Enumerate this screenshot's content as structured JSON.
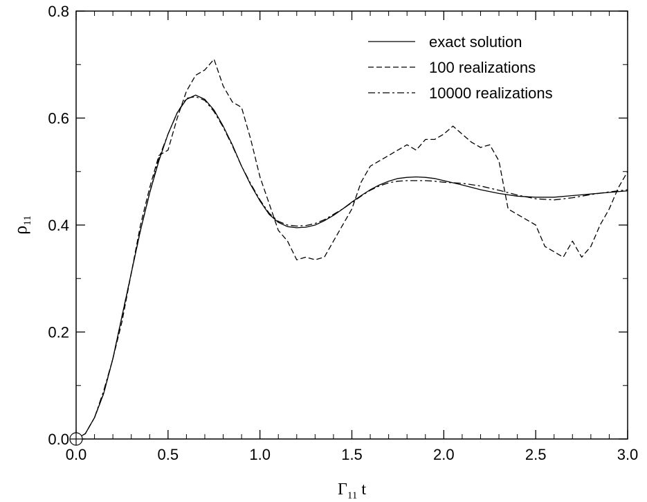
{
  "chart_data": {
    "type": "line",
    "title": "",
    "xlabel": {
      "main": "Γ",
      "sub": "11",
      "tail": " t"
    },
    "ylabel": {
      "main": "ρ",
      "sub": "11"
    },
    "xlim": [
      0.0,
      3.0
    ],
    "ylim": [
      0.0,
      0.8
    ],
    "xticks": [
      "0.0",
      "0.5",
      "1.0",
      "1.5",
      "2.0",
      "2.5",
      "3.0"
    ],
    "yticks": [
      "0.0",
      "0.2",
      "0.4",
      "0.6",
      "0.8"
    ],
    "grid": false,
    "legend_position": "top-right",
    "series": [
      {
        "name": "exact solution",
        "style": "solid",
        "x": [
          0.0,
          0.05,
          0.1,
          0.15,
          0.2,
          0.25,
          0.3,
          0.35,
          0.4,
          0.45,
          0.5,
          0.55,
          0.6,
          0.65,
          0.7,
          0.75,
          0.8,
          0.85,
          0.9,
          0.95,
          1.0,
          1.05,
          1.1,
          1.15,
          1.2,
          1.25,
          1.3,
          1.35,
          1.4,
          1.45,
          1.5,
          1.55,
          1.6,
          1.65,
          1.7,
          1.75,
          1.8,
          1.85,
          1.9,
          1.95,
          2.0,
          2.1,
          2.2,
          2.3,
          2.4,
          2.5,
          2.6,
          2.7,
          2.8,
          2.9,
          3.0
        ],
        "y": [
          0.0,
          0.01,
          0.04,
          0.085,
          0.15,
          0.23,
          0.31,
          0.39,
          0.46,
          0.52,
          0.57,
          0.61,
          0.635,
          0.643,
          0.635,
          0.615,
          0.585,
          0.55,
          0.51,
          0.475,
          0.445,
          0.42,
          0.405,
          0.397,
          0.395,
          0.396,
          0.4,
          0.408,
          0.418,
          0.43,
          0.443,
          0.455,
          0.466,
          0.475,
          0.482,
          0.487,
          0.489,
          0.49,
          0.489,
          0.487,
          0.483,
          0.475,
          0.466,
          0.459,
          0.454,
          0.452,
          0.452,
          0.455,
          0.458,
          0.461,
          0.464
        ]
      },
      {
        "name": "100 realizations",
        "style": "dashed",
        "x": [
          0.0,
          0.05,
          0.1,
          0.15,
          0.2,
          0.25,
          0.3,
          0.35,
          0.4,
          0.45,
          0.5,
          0.55,
          0.6,
          0.65,
          0.7,
          0.75,
          0.8,
          0.85,
          0.9,
          0.95,
          1.0,
          1.05,
          1.1,
          1.15,
          1.2,
          1.25,
          1.3,
          1.35,
          1.4,
          1.45,
          1.5,
          1.55,
          1.6,
          1.65,
          1.7,
          1.75,
          1.8,
          1.85,
          1.9,
          1.95,
          2.0,
          2.05,
          2.1,
          2.15,
          2.2,
          2.25,
          2.3,
          2.35,
          2.4,
          2.45,
          2.5,
          2.55,
          2.6,
          2.65,
          2.7,
          2.75,
          2.8,
          2.85,
          2.9,
          2.95,
          3.0
        ],
        "y": [
          0.0,
          0.01,
          0.04,
          0.085,
          0.15,
          0.22,
          0.31,
          0.4,
          0.47,
          0.53,
          0.54,
          0.6,
          0.65,
          0.68,
          0.69,
          0.71,
          0.66,
          0.63,
          0.62,
          0.56,
          0.49,
          0.44,
          0.39,
          0.37,
          0.335,
          0.34,
          0.335,
          0.34,
          0.37,
          0.4,
          0.43,
          0.48,
          0.51,
          0.52,
          0.53,
          0.54,
          0.55,
          0.54,
          0.56,
          0.56,
          0.57,
          0.585,
          0.57,
          0.555,
          0.545,
          0.55,
          0.52,
          0.43,
          0.42,
          0.41,
          0.4,
          0.36,
          0.35,
          0.34,
          0.37,
          0.34,
          0.36,
          0.4,
          0.43,
          0.47,
          0.5
        ]
      },
      {
        "name": "10000 realizations",
        "style": "dashdot",
        "x": [
          0.0,
          0.05,
          0.1,
          0.15,
          0.2,
          0.25,
          0.3,
          0.35,
          0.4,
          0.45,
          0.5,
          0.55,
          0.6,
          0.65,
          0.7,
          0.75,
          0.8,
          0.85,
          0.9,
          0.95,
          1.0,
          1.05,
          1.1,
          1.15,
          1.2,
          1.25,
          1.3,
          1.35,
          1.4,
          1.45,
          1.5,
          1.55,
          1.6,
          1.65,
          1.7,
          1.75,
          1.8,
          1.85,
          1.9,
          1.95,
          2.0,
          2.1,
          2.2,
          2.3,
          2.4,
          2.5,
          2.6,
          2.7,
          2.8,
          2.9,
          3.0
        ],
        "y": [
          0.0,
          0.01,
          0.04,
          0.09,
          0.15,
          0.23,
          0.31,
          0.39,
          0.46,
          0.525,
          0.57,
          0.61,
          0.637,
          0.64,
          0.633,
          0.612,
          0.583,
          0.548,
          0.51,
          0.477,
          0.447,
          0.422,
          0.407,
          0.4,
          0.398,
          0.399,
          0.403,
          0.41,
          0.42,
          0.43,
          0.442,
          0.454,
          0.465,
          0.473,
          0.479,
          0.482,
          0.483,
          0.483,
          0.483,
          0.482,
          0.48,
          0.478,
          0.473,
          0.465,
          0.456,
          0.449,
          0.447,
          0.451,
          0.457,
          0.462,
          0.466
        ]
      }
    ]
  }
}
